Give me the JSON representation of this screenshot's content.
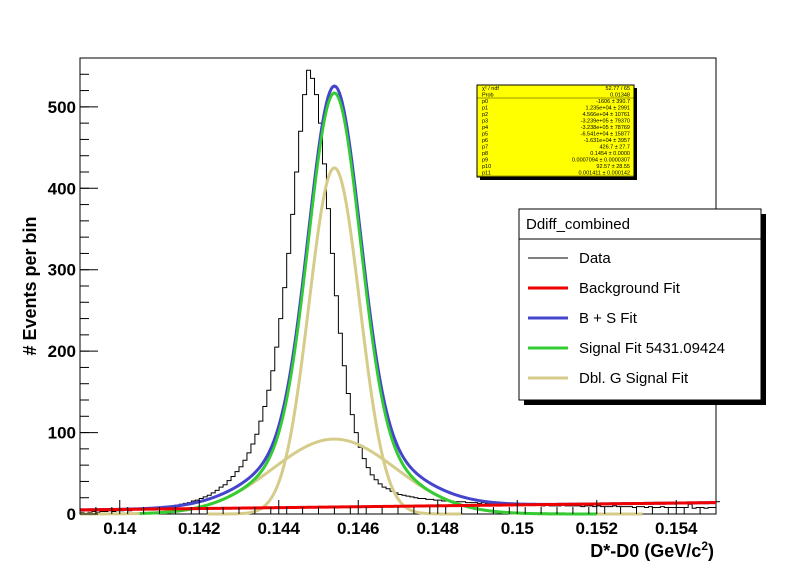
{
  "chart_data": {
    "type": "line",
    "title": "",
    "xlabel": "D*-D0 (GeV/c",
    "xlabel_sup": "2",
    "xlabel_close": ")",
    "ylabel": "# Events per bin",
    "xlim": [
      0.139,
      0.155
    ],
    "ylim": [
      0,
      560
    ],
    "x_ticks": [
      0.14,
      0.142,
      0.144,
      0.146,
      0.148,
      0.15,
      0.152,
      0.154
    ],
    "x_tick_labels": [
      "0.14",
      "0.142",
      "0.144",
      "0.146",
      "0.148",
      "0.15",
      "0.152",
      "0.154"
    ],
    "y_ticks": [
      0,
      100,
      200,
      300,
      400,
      500
    ],
    "y_tick_labels": [
      "0",
      "100",
      "200",
      "300",
      "400",
      "500"
    ],
    "bin_width": 0.0001,
    "histogram": {
      "name": "Data",
      "x_start": 0.139,
      "counts": [
        2,
        1,
        2,
        3,
        2,
        3,
        3,
        4,
        3,
        4,
        4,
        5,
        4,
        6,
        5,
        6,
        6,
        7,
        6,
        8,
        8,
        9,
        9,
        10,
        11,
        12,
        13,
        14,
        16,
        17,
        19,
        21,
        23,
        26,
        29,
        33,
        36,
        41,
        46,
        52,
        58,
        66,
        75,
        86,
        98,
        114,
        132,
        152,
        176,
        205,
        240,
        278,
        320,
        368,
        420,
        470,
        515,
        545,
        535,
        515,
        480,
        430,
        375,
        320,
        268,
        222,
        182,
        148,
        122,
        100,
        82,
        68,
        57,
        48,
        42,
        37,
        33,
        31,
        28,
        26,
        24,
        23,
        22,
        21,
        20,
        19,
        19,
        18,
        18,
        17,
        17,
        16,
        16,
        16,
        15,
        15,
        15,
        14,
        14,
        14,
        13,
        14,
        13,
        13,
        12,
        13,
        12,
        12,
        12,
        12,
        11,
        12,
        11,
        11,
        11,
        11,
        10,
        11,
        10,
        10,
        10,
        11,
        10,
        10,
        10,
        10,
        9,
        10,
        10,
        9,
        10,
        9,
        9,
        9,
        10,
        9,
        9,
        9,
        9,
        8,
        9,
        9,
        8,
        9,
        8,
        8,
        9,
        8,
        8,
        8,
        8,
        8,
        8,
        12,
        7,
        8,
        8,
        7,
        8,
        8,
        15
      ],
      "color": "#000000"
    },
    "series": [
      {
        "name": "Background Fit",
        "color": "#ee0000",
        "model": "background",
        "params": {
          "a": 5,
          "b": 1.15e-05
        }
      },
      {
        "name": "B + S Fit",
        "color": "#4444cc",
        "model": "sum"
      },
      {
        "name": "Signal Fit 5431.09424",
        "color": "#33cc33",
        "model": "signal"
      },
      {
        "name": "Dbl. G Signal Fit",
        "color": "#d4cc88",
        "model": "gaussians",
        "components": [
          {
            "amp": 425,
            "mean": 0.1454,
            "sigma": 0.00064
          },
          {
            "amp": 92,
            "mean": 0.1454,
            "sigma": 0.00155
          }
        ]
      }
    ],
    "legend": {
      "placement": "right",
      "header": "Ddiff_combined"
    },
    "stats_box": {
      "placement": "top-right",
      "background": "#ffff00",
      "rows": [
        [
          "χ² / ndf",
          "52.77 / 65"
        ],
        [
          "Prob",
          "0.01348"
        ],
        [
          "p0",
          "-1606 ± 390.7"
        ],
        [
          "p1",
          "1.235e+04 ± 2991"
        ],
        [
          "p2",
          "4.566e+04 ± 10761"
        ],
        [
          "p3",
          "-3.239e+05 ± 79370"
        ],
        [
          "p4",
          "-3.238e+05 ± 78769"
        ],
        [
          "p5",
          "-6.541e+04 ± 15877"
        ],
        [
          "p6",
          "-1.631e+04 ± 3957"
        ],
        [
          "p7",
          "426.7 ± 27.7"
        ],
        [
          "p8",
          "0.1454 ± 0.0000"
        ],
        [
          "p9",
          "0.0007094 ± 0.0000307"
        ],
        [
          "p10",
          "92.57 ± 28.55"
        ],
        [
          "p11",
          "0.001411 ± 0.000142"
        ]
      ]
    },
    "grid": false
  }
}
